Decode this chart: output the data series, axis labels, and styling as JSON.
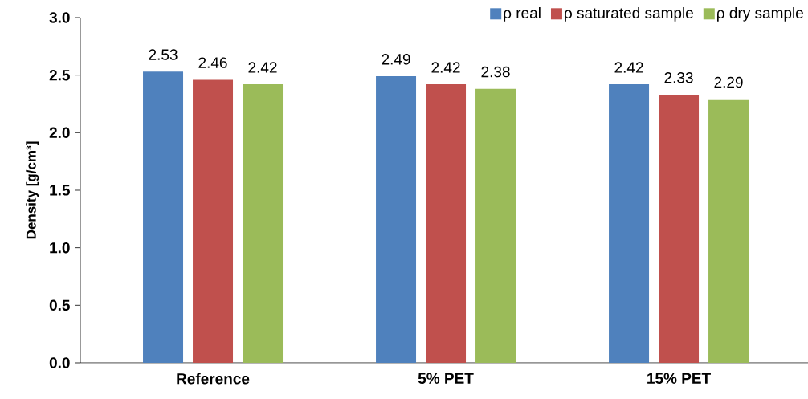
{
  "chart_data": {
    "type": "bar",
    "ylabel": "Density  [g/cm³]",
    "categories": [
      "Reference",
      "5% PET",
      "15% PET"
    ],
    "series": [
      {
        "name": "ρ real",
        "color": "#4f81bd",
        "values": [
          2.53,
          2.49,
          2.42
        ],
        "value_labels": [
          "2.53",
          "2.49",
          "2.42"
        ]
      },
      {
        "name": "ρ saturated sample",
        "color": "#c0504d",
        "values": [
          2.46,
          2.42,
          2.33
        ],
        "value_labels": [
          "2.46",
          "2.42",
          "2.33"
        ]
      },
      {
        "name": "ρ dry sample",
        "color": "#9bbb59",
        "values": [
          2.42,
          2.38,
          2.29
        ],
        "value_labels": [
          "2.42",
          "2.38",
          "2.29"
        ]
      }
    ],
    "ylim": [
      0,
      3
    ],
    "yticks": [
      {
        "value": 0,
        "label": "0.0"
      },
      {
        "value": 0.5,
        "label": "0.5"
      },
      {
        "value": 1,
        "label": "1.0"
      },
      {
        "value": 1.5,
        "label": "1.5"
      },
      {
        "value": 2,
        "label": "2.0"
      },
      {
        "value": 2.5,
        "label": "2.5"
      },
      {
        "value": 3,
        "label": "3.0"
      }
    ],
    "legend": "top right",
    "grid": false
  }
}
